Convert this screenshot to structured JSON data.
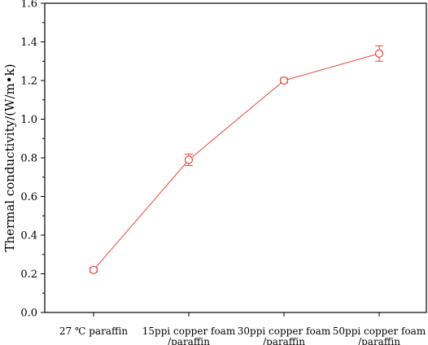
{
  "chart_data": {
    "type": "line",
    "categories": [
      [
        "27 ℃ paraffin"
      ],
      [
        "15ppi copper foam",
        "/paraffin"
      ],
      [
        "30ppi copper foam",
        "/paraffin"
      ],
      [
        "50ppi copper foam",
        "/paraffin"
      ]
    ],
    "series": [
      {
        "values": [
          0.22,
          0.79,
          1.2,
          1.34
        ],
        "errors": [
          0.012,
          0.03,
          0.012,
          0.04
        ],
        "color": "#e8463f",
        "marker": "open-circle"
      }
    ],
    "ylabel": "Thermal conductivity/(W/m•k)",
    "xlabel": "",
    "ylim": [
      0,
      1.6
    ],
    "yticks": [
      "0.0",
      "0.2",
      "0.4",
      "0.6",
      "0.8",
      "1.0",
      "1.2",
      "1.4",
      "1.6"
    ],
    "grid": false
  }
}
